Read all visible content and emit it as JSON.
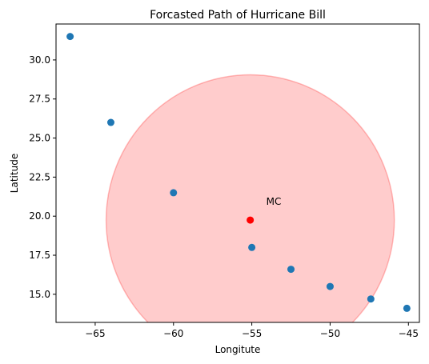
{
  "chart_data": {
    "type": "scatter",
    "title": "Forcasted Path of Hurricane Bill",
    "xlabel": "Longitute",
    "ylabel": "Latitude",
    "xlim": [
      -67.5,
      -44.3
    ],
    "ylim": [
      13.2,
      32.3
    ],
    "xticks": [
      -65,
      -60,
      -55,
      -50,
      -45
    ],
    "yticks": [
      15.0,
      17.5,
      20.0,
      22.5,
      25.0,
      27.5,
      30.0
    ],
    "xtick_labels": [
      "−65",
      "−60",
      "−55",
      "−50",
      "−45"
    ],
    "ytick_labels": [
      "15.0",
      "17.5",
      "20.0",
      "22.5",
      "25.0",
      "27.5",
      "30.0"
    ],
    "grid": false,
    "series": [
      {
        "color": "#1f77b4",
        "points": [
          {
            "x": -66.6,
            "y": 31.5
          },
          {
            "x": -64.0,
            "y": 26.0
          },
          {
            "x": -60.0,
            "y": 21.5
          },
          {
            "x": -55.0,
            "y": 18.0
          },
          {
            "x": -52.5,
            "y": 16.6
          },
          {
            "x": -50.0,
            "y": 15.5
          },
          {
            "x": -47.4,
            "y": 14.7
          },
          {
            "x": -45.1,
            "y": 14.1
          }
        ]
      }
    ],
    "highlight": {
      "x": -55.1,
      "y": 19.75,
      "color": "#ff0000",
      "label": "MC"
    },
    "region": {
      "cx": -55.1,
      "cy": 19.75,
      "rx": 9.2,
      "ry": 9.3,
      "color": "#ff0000",
      "opacity": 0.2
    }
  }
}
